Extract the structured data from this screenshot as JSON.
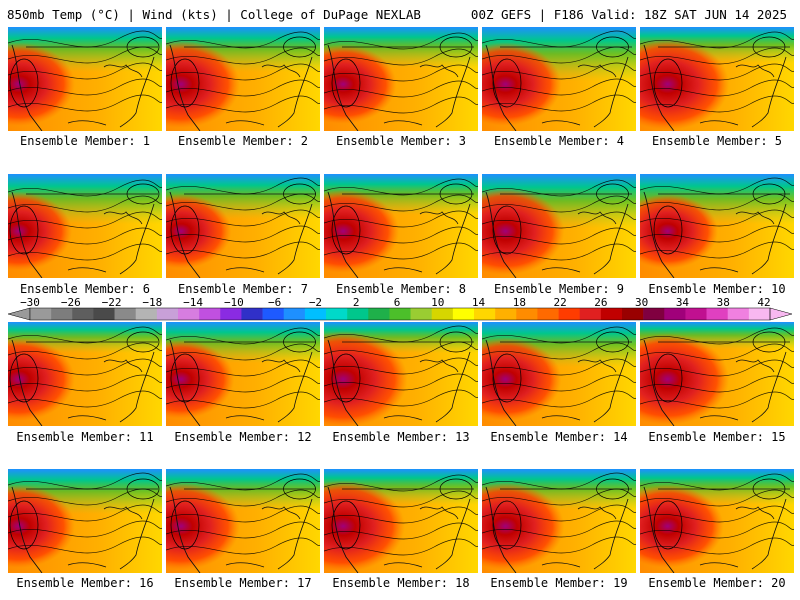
{
  "header": {
    "left": "850mb Temp (°C) | Wind (kts) | College of DuPage NEXLAB",
    "right": "00Z GEFS | F186 Valid: 18Z SAT JUN 14 2025"
  },
  "members": [
    {
      "label": "Ensemble Member: 1",
      "warm": 1.0,
      "cool": 1.0
    },
    {
      "label": "Ensemble Member: 2",
      "warm": 1.05,
      "cool": 1.0
    },
    {
      "label": "Ensemble Member: 3",
      "warm": 0.95,
      "cool": 0.9
    },
    {
      "label": "Ensemble Member: 4",
      "warm": 1.0,
      "cool": 1.2
    },
    {
      "label": "Ensemble Member: 5",
      "warm": 1.1,
      "cool": 0.8
    },
    {
      "label": "Ensemble Member: 6",
      "warm": 0.95,
      "cool": 1.1
    },
    {
      "label": "Ensemble Member: 7",
      "warm": 0.9,
      "cool": 1.0
    },
    {
      "label": "Ensemble Member: 8",
      "warm": 1.0,
      "cool": 0.9
    },
    {
      "label": "Ensemble Member: 9",
      "warm": 1.05,
      "cool": 1.2
    },
    {
      "label": "Ensemble Member: 10",
      "warm": 0.9,
      "cool": 1.1
    },
    {
      "label": "Ensemble Member: 11",
      "warm": 1.0,
      "cool": 0.7
    },
    {
      "label": "Ensemble Member: 12",
      "warm": 0.95,
      "cool": 0.9
    },
    {
      "label": "Ensemble Member: 13",
      "warm": 1.15,
      "cool": 0.7
    },
    {
      "label": "Ensemble Member: 14",
      "warm": 1.0,
      "cool": 1.0
    },
    {
      "label": "Ensemble Member: 15",
      "warm": 1.1,
      "cool": 0.6
    },
    {
      "label": "Ensemble Member: 16",
      "warm": 1.0,
      "cool": 1.0
    },
    {
      "label": "Ensemble Member: 17",
      "warm": 1.05,
      "cool": 0.9
    },
    {
      "label": "Ensemble Member: 18",
      "warm": 1.1,
      "cool": 0.8
    },
    {
      "label": "Ensemble Member: 19",
      "warm": 1.05,
      "cool": 0.9
    },
    {
      "label": "Ensemble Member: 20",
      "warm": 1.0,
      "cool": 0.8
    }
  ],
  "colorbar": {
    "labels": [
      "−30",
      "−26",
      "−22",
      "−18",
      "−14",
      "−10",
      "−6",
      "−2",
      "2",
      "6",
      "10",
      "14",
      "18",
      "22",
      "26",
      "30",
      "34",
      "38",
      "42"
    ],
    "colors": [
      "#9a9a9a",
      "#7d7d7d",
      "#5e5e5e",
      "#4a4a4a",
      "#8a8a8a",
      "#b4b4b4",
      "#c8a0d8",
      "#d77de0",
      "#c050e0",
      "#8a2be2",
      "#3030c8",
      "#1e5aff",
      "#1e90ff",
      "#00bfff",
      "#00d9c9",
      "#00c78c",
      "#1fb04a",
      "#4cbf2a",
      "#9acd32",
      "#d6d600",
      "#ffff00",
      "#ffd700",
      "#ffb000",
      "#ff8c00",
      "#ff6a00",
      "#ff3c00",
      "#e02020",
      "#c00000",
      "#990000",
      "#800040",
      "#a0007a",
      "#c01090",
      "#e040c0",
      "#f080e0",
      "#f8b8f0"
    ]
  }
}
